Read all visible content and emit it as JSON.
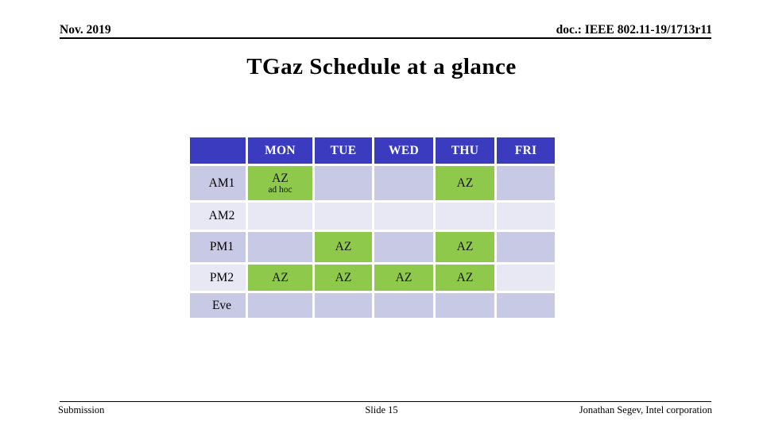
{
  "header": {
    "date": "Nov. 2019",
    "doc": "doc.: IEEE 802.11-19/1713r11"
  },
  "title": "TGaz Schedule at a glance",
  "schedule": {
    "columns": [
      "",
      "MON",
      "TUE",
      "WED",
      "THU",
      "FRI"
    ],
    "rows": [
      {
        "label": "AM1",
        "cells": [
          "AZ",
          "",
          "",
          "AZ",
          ""
        ],
        "mon_sub": "ad hoc"
      },
      {
        "label": "AM2",
        "cells": [
          "",
          "",
          "",
          "",
          ""
        ]
      },
      {
        "label": "PM1",
        "cells": [
          "",
          "AZ",
          "",
          "AZ",
          ""
        ]
      },
      {
        "label": "PM2",
        "cells": [
          "AZ",
          "AZ",
          "AZ",
          "AZ",
          ""
        ]
      },
      {
        "label": "Eve",
        "cells": [
          "",
          "",
          "",
          "",
          ""
        ]
      }
    ]
  },
  "footer": {
    "left": "Submission",
    "center": "Slide 15",
    "right": "Jonathan Segev, Intel corporation"
  },
  "colors": {
    "table_header_blue": "#3B3BC0",
    "session_green": "#8FC94C",
    "band_dark_lavender": "#C8C9E4",
    "band_light_lavender": "#E8E8F4",
    "text_black": "#000000",
    "header_text_white": "#FFFFFF"
  }
}
